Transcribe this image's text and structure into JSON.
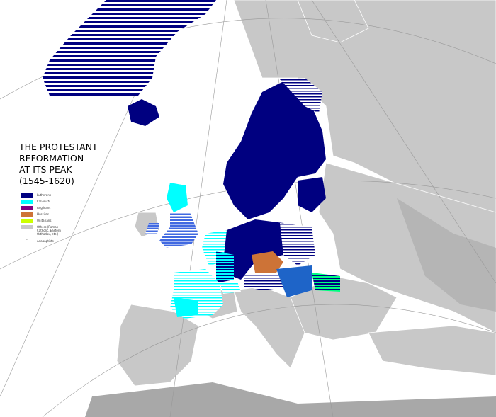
{
  "map": {
    "title_lines": [
      "THE PROTESTANT",
      "REFORMATION",
      "AT ITS PEAK",
      "(1545-1620)"
    ],
    "legend": [
      {
        "label": "Lutherans",
        "color": "#000080"
      },
      {
        "label": "Calvinists",
        "color": "#00ffff"
      },
      {
        "label": "Anglicans",
        "color": "#800080"
      },
      {
        "label": "Hussites",
        "color": "#cd7337"
      },
      {
        "label": "Unitarians",
        "color": "#ccff00"
      },
      {
        "label": "Others (Roman Catholic, Eastern Orthodox, etc.)",
        "color": "#c8c8c8"
      },
      {
        "label": "Anabaptists",
        "color": "#000000"
      }
    ],
    "colors": {
      "sea": "#ffffff",
      "land_other": "#c8c8c8",
      "land_outside": "#a0a0a0",
      "border": "#ffffff"
    }
  }
}
